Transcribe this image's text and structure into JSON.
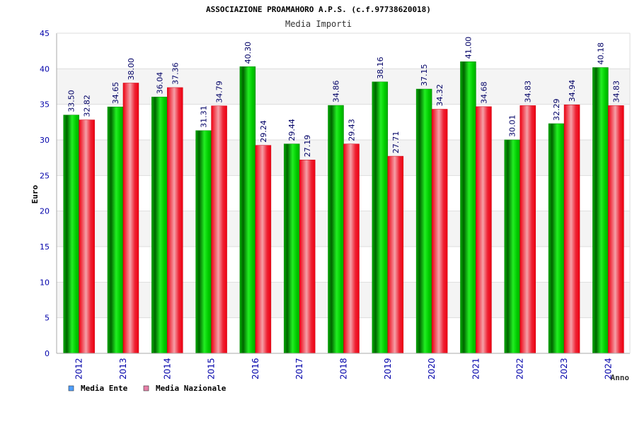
{
  "chart_data": {
    "type": "bar",
    "title": "ASSOCIAZIONE PROAMAHORO A.P.S. (c.f.97738620018)",
    "subtitle": "Media Importi",
    "xlabel": "Anno",
    "ylabel": "Euro",
    "ylim": [
      0,
      45
    ],
    "ytick_step": 5,
    "y_ticks": [
      "0",
      "5",
      "10",
      "15",
      "20",
      "25",
      "30",
      "35",
      "40",
      "45"
    ],
    "grid": true,
    "legend_position": "bottom-left",
    "categories": [
      "2012",
      "2013",
      "2014",
      "2015",
      "2016",
      "2017",
      "2018",
      "2019",
      "2020",
      "2021",
      "2022",
      "2023",
      "2024"
    ],
    "series": [
      {
        "name": "Media Ente",
        "color": "#00bb00",
        "legend_color": "#4f9fff",
        "values": [
          33.5,
          34.65,
          36.04,
          31.31,
          40.3,
          29.44,
          34.86,
          38.16,
          37.15,
          41.0,
          30.01,
          32.29,
          40.18
        ],
        "labels": [
          "33.50",
          "34.65",
          "36.04",
          "31.31",
          "40.30",
          "29.44",
          "34.86",
          "38.16",
          "37.15",
          "41.00",
          "30.01",
          "32.29",
          "40.18"
        ]
      },
      {
        "name": "Media Nazionale",
        "color": "#ee1122",
        "legend_color": "#e77fa8",
        "values": [
          32.82,
          38.0,
          37.36,
          34.79,
          29.24,
          27.19,
          29.43,
          27.71,
          34.32,
          34.68,
          34.83,
          34.94,
          34.83
        ],
        "labels": [
          "32.82",
          "38.00",
          "37.36",
          "34.79",
          "29.24",
          "27.19",
          "29.43",
          "27.71",
          "34.32",
          "34.68",
          "34.83",
          "34.94",
          "34.83"
        ]
      }
    ]
  }
}
